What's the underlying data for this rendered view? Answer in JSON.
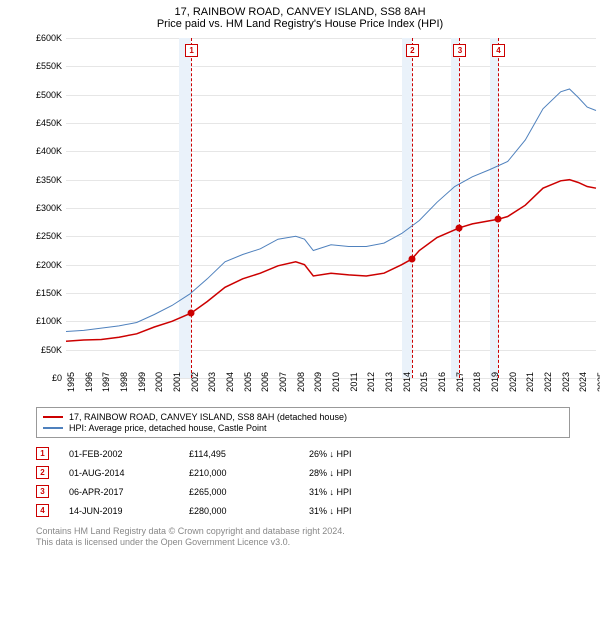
{
  "title": "17, RAINBOW ROAD, CANVEY ISLAND, SS8 8AH",
  "subtitle": "Price paid vs. HM Land Registry's House Price Index (HPI)",
  "chart": {
    "type": "line",
    "ylim": [
      0,
      600000
    ],
    "ytick_step": 50000,
    "y_prefix": "£",
    "y_suffix": "K",
    "xlim": [
      1995,
      2025
    ],
    "xtick_step": 1,
    "background_color": "#ffffff",
    "grid_color": "#e6e6e6",
    "band_color": "#eaf2fa",
    "bands": [
      {
        "from": 2001.4,
        "to": 2002.1
      },
      {
        "from": 2014.0,
        "to": 2014.6
      },
      {
        "from": 2016.8,
        "to": 2017.3
      },
      {
        "from": 2019.0,
        "to": 2019.5
      }
    ],
    "vlines": [
      2002.08,
      2014.58,
      2017.27,
      2019.45
    ],
    "series": [
      {
        "label": "17, RAINBOW ROAD, CANVEY ISLAND, SS8 8AH (detached house)",
        "color": "#cc0000",
        "width": 1.5,
        "points": [
          [
            1995,
            65000
          ],
          [
            1996,
            67000
          ],
          [
            1997,
            68000
          ],
          [
            1998,
            72000
          ],
          [
            1999,
            78000
          ],
          [
            2000,
            90000
          ],
          [
            2001,
            100000
          ],
          [
            2002.08,
            114495
          ],
          [
            2003,
            135000
          ],
          [
            2004,
            160000
          ],
          [
            2005,
            175000
          ],
          [
            2006,
            185000
          ],
          [
            2007,
            198000
          ],
          [
            2008,
            205000
          ],
          [
            2008.5,
            200000
          ],
          [
            2009,
            180000
          ],
          [
            2010,
            185000
          ],
          [
            2011,
            182000
          ],
          [
            2012,
            180000
          ],
          [
            2013,
            185000
          ],
          [
            2014,
            200000
          ],
          [
            2014.58,
            210000
          ],
          [
            2015,
            225000
          ],
          [
            2016,
            248000
          ],
          [
            2017.27,
            265000
          ],
          [
            2018,
            272000
          ],
          [
            2019.45,
            280000
          ],
          [
            2020,
            285000
          ],
          [
            2021,
            305000
          ],
          [
            2022,
            335000
          ],
          [
            2023,
            348000
          ],
          [
            2023.5,
            350000
          ],
          [
            2024,
            345000
          ],
          [
            2024.5,
            338000
          ],
          [
            2025,
            335000
          ]
        ]
      },
      {
        "label": "HPI: Average price, detached house, Castle Point",
        "color": "#4f81bd",
        "width": 1,
        "points": [
          [
            1995,
            82000
          ],
          [
            1996,
            84000
          ],
          [
            1997,
            88000
          ],
          [
            1998,
            92000
          ],
          [
            1999,
            98000
          ],
          [
            2000,
            112000
          ],
          [
            2001,
            128000
          ],
          [
            2002,
            148000
          ],
          [
            2003,
            175000
          ],
          [
            2004,
            205000
          ],
          [
            2005,
            218000
          ],
          [
            2006,
            228000
          ],
          [
            2007,
            245000
          ],
          [
            2008,
            250000
          ],
          [
            2008.5,
            245000
          ],
          [
            2009,
            225000
          ],
          [
            2010,
            235000
          ],
          [
            2011,
            232000
          ],
          [
            2012,
            232000
          ],
          [
            2013,
            238000
          ],
          [
            2014,
            255000
          ],
          [
            2015,
            278000
          ],
          [
            2016,
            310000
          ],
          [
            2017,
            338000
          ],
          [
            2018,
            355000
          ],
          [
            2019,
            368000
          ],
          [
            2020,
            382000
          ],
          [
            2021,
            420000
          ],
          [
            2022,
            475000
          ],
          [
            2023,
            505000
          ],
          [
            2023.5,
            510000
          ],
          [
            2024,
            495000
          ],
          [
            2024.5,
            478000
          ],
          [
            2025,
            472000
          ]
        ]
      }
    ],
    "markers": [
      {
        "n": 1,
        "x": 2002.08,
        "y": 114495
      },
      {
        "n": 2,
        "x": 2014.58,
        "y": 210000
      },
      {
        "n": 3,
        "x": 2017.27,
        "y": 265000
      },
      {
        "n": 4,
        "x": 2019.45,
        "y": 280000
      }
    ]
  },
  "legend": {
    "items": [
      {
        "color": "#cc0000",
        "label": "17, RAINBOW ROAD, CANVEY ISLAND, SS8 8AH (detached house)"
      },
      {
        "color": "#4f81bd",
        "label": "HPI: Average price, detached house, Castle Point"
      }
    ]
  },
  "transactions": [
    {
      "n": "1",
      "date": "01-FEB-2002",
      "price": "£114,495",
      "diff": "26% ↓ HPI"
    },
    {
      "n": "2",
      "date": "01-AUG-2014",
      "price": "£210,000",
      "diff": "28% ↓ HPI"
    },
    {
      "n": "3",
      "date": "06-APR-2017",
      "price": "£265,000",
      "diff": "31% ↓ HPI"
    },
    {
      "n": "4",
      "date": "14-JUN-2019",
      "price": "£280,000",
      "diff": "31% ↓ HPI"
    }
  ],
  "footer": {
    "line1": "Contains HM Land Registry data © Crown copyright and database right 2024.",
    "line2": "This data is licensed under the Open Government Licence v3.0."
  }
}
